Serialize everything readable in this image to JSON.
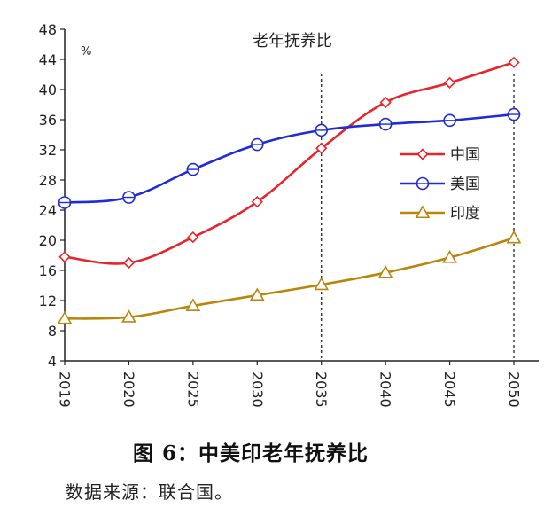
{
  "chart_data": {
    "type": "line",
    "title": "老年抚养比",
    "unit_label": "%",
    "categories": [
      "2019",
      "2020",
      "2025",
      "2030",
      "2035",
      "2040",
      "2045",
      "2050"
    ],
    "ylim": [
      4,
      48
    ],
    "yticks": [
      4,
      8,
      12,
      16,
      20,
      24,
      28,
      32,
      36,
      40,
      44,
      48
    ],
    "grid": false,
    "legend_position": "right",
    "reference_lines_at": [
      "2035",
      "2050"
    ],
    "series": [
      {
        "name": "中国",
        "color": "#e8232a",
        "marker": "diamond",
        "values": [
          17.8,
          17.0,
          20.4,
          25.1,
          32.2,
          38.3,
          40.9,
          43.6
        ]
      },
      {
        "name": "美国",
        "color": "#1f2bd6",
        "marker": "circle",
        "values": [
          25.0,
          25.7,
          29.4,
          32.7,
          34.6,
          35.4,
          35.9,
          36.7
        ]
      },
      {
        "name": "印度",
        "color": "#b8860b",
        "marker": "triangle",
        "values": [
          9.6,
          9.8,
          11.3,
          12.7,
          14.1,
          15.7,
          17.7,
          20.3
        ]
      }
    ]
  },
  "caption": "图 6：中美印老年抚养比",
  "source": "数据来源：联合国。"
}
